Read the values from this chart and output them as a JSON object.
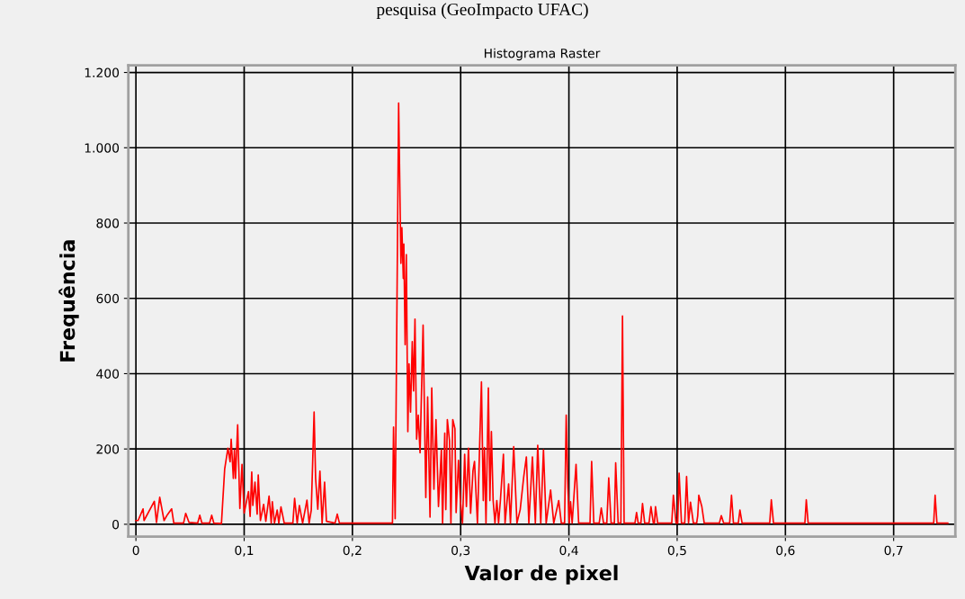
{
  "chart_data": {
    "type": "line",
    "title": "Histograma Raster",
    "xlabel": "Valor de pixel",
    "ylabel": "Frequência",
    "annotations": [
      "pesquisa (GeoImpacto UFAC)"
    ],
    "xlim": [
      -0.007,
      0.757
    ],
    "ylim": [
      -33,
      1219
    ],
    "xticks": [
      0,
      {
        "value": 0.1,
        "label": "0,1"
      },
      {
        "value": 0.2,
        "label": "0,2"
      },
      {
        "value": 0.3,
        "label": "0,3"
      },
      {
        "value": 0.4,
        "label": "0,4"
      },
      {
        "value": 0.5,
        "label": "0,5"
      },
      {
        "value": 0.6,
        "label": "0,6"
      },
      {
        "value": 0.7,
        "label": "0,7"
      }
    ],
    "yticks": [
      0,
      200,
      400,
      600,
      800,
      {
        "value": 1000,
        "label": "1.000"
      },
      {
        "value": 1200,
        "label": "1.200"
      }
    ],
    "grid": true,
    "marker": "none",
    "line_style": "solid",
    "series": [
      {
        "color": "#ff0000",
        "x": [
          0.0,
          0.002,
          0.0066,
          0.0075,
          0.017,
          0.019,
          0.022,
          0.026,
          0.029,
          0.033,
          0.035,
          0.044,
          0.046,
          0.049,
          0.057,
          0.059,
          0.061,
          0.068,
          0.07,
          0.072,
          0.079,
          0.082,
          0.085,
          0.087,
          0.088,
          0.09,
          0.091,
          0.092,
          0.094,
          0.096,
          0.098,
          0.1,
          0.104,
          0.1055,
          0.107,
          0.108,
          0.11,
          0.112,
          0.113,
          0.115,
          0.118,
          0.12,
          0.123,
          0.125,
          0.126,
          0.128,
          0.1305,
          0.132,
          0.134,
          0.137,
          0.145,
          0.1466,
          0.149,
          0.151,
          0.154,
          0.158,
          0.16,
          0.162,
          0.1646,
          0.166,
          0.168,
          0.17,
          0.172,
          0.1743,
          0.176,
          0.184,
          0.186,
          0.188,
          0.237,
          0.238,
          0.2395,
          0.2427,
          0.2448,
          0.2457,
          0.247,
          0.2475,
          0.2487,
          0.2498,
          0.2512,
          0.2523,
          0.2537,
          0.2553,
          0.2565,
          0.2578,
          0.2593,
          0.2608,
          0.2625,
          0.2653,
          0.2678,
          0.2695,
          0.2717,
          0.2733,
          0.2753,
          0.2772,
          0.2795,
          0.2822,
          0.2833,
          0.2853,
          0.2863,
          0.2877,
          0.2897,
          0.291,
          0.2927,
          0.2947,
          0.2958,
          0.298,
          0.2997,
          0.3017,
          0.3037,
          0.3053,
          0.3072,
          0.3092,
          0.3114,
          0.3128,
          0.3155,
          0.3192,
          0.3209,
          0.322,
          0.3234,
          0.3256,
          0.327,
          0.3284,
          0.33,
          0.3317,
          0.3334,
          0.335,
          0.3367,
          0.3395,
          0.341,
          0.3443,
          0.346,
          0.349,
          0.352,
          0.355,
          0.3583,
          0.3607,
          0.363,
          0.3663,
          0.369,
          0.3712,
          0.374,
          0.3765,
          0.379,
          0.3831,
          0.386,
          0.3906,
          0.393,
          0.396,
          0.3975,
          0.399,
          0.4003,
          0.4015,
          0.403,
          0.4066,
          0.409,
          0.4195,
          0.421,
          0.423,
          0.428,
          0.4299,
          0.432,
          0.435,
          0.4368,
          0.439,
          0.442,
          0.4432,
          0.4455,
          0.448,
          0.4495,
          0.451,
          0.461,
          0.4625,
          0.464,
          0.4665,
          0.468,
          0.47,
          0.474,
          0.4758,
          0.478,
          0.479,
          0.48,
          0.482,
          0.495,
          0.4965,
          0.499,
          0.5005,
          0.5018,
          0.504,
          0.507,
          0.5087,
          0.5105,
          0.5123,
          0.515,
          0.518,
          0.519,
          0.52,
          0.5228,
          0.525,
          0.539,
          0.5408,
          0.543,
          0.5485,
          0.5502,
          0.552,
          0.5565,
          0.558,
          0.56,
          0.5855,
          0.587,
          0.589,
          0.618,
          0.6193,
          0.621,
          0.737,
          0.7383,
          0.74,
          0.75
        ],
        "values": [
          10,
          10,
          41,
          10,
          61,
          5,
          72,
          10,
          25,
          41,
          3,
          3,
          29,
          5,
          3,
          24,
          3,
          3,
          24,
          3,
          2,
          147,
          202,
          166,
          226,
          122,
          197,
          122,
          264,
          42,
          159,
          30,
          87,
          21,
          139,
          50,
          112,
          27,
          131,
          10,
          53,
          8,
          75,
          3,
          60,
          3,
          38,
          3,
          46,
          3,
          3,
          69,
          3,
          50,
          3,
          64,
          3,
          38,
          298,
          122,
          40,
          141,
          3,
          112,
          8,
          3,
          27,
          3,
          3,
          258,
          15,
          1119,
          693,
          788,
          653,
          744,
          477,
          716,
          246,
          426,
          298,
          485,
          354,
          545,
          226,
          290,
          190,
          529,
          71,
          338,
          19,
          362,
          93,
          278,
          47,
          198,
          3,
          242,
          39,
          278,
          222,
          3,
          278,
          254,
          31,
          170,
          63,
          3,
          186,
          47,
          202,
          29,
          143,
          167,
          3,
          378,
          63,
          204,
          3,
          362,
          63,
          246,
          63,
          3,
          63,
          3,
          63,
          186,
          3,
          107,
          3,
          206,
          3,
          39,
          127,
          179,
          3,
          179,
          3,
          210,
          3,
          198,
          3,
          91,
          3,
          63,
          3,
          3,
          290,
          99,
          3,
          60,
          3,
          159,
          3,
          3,
          167,
          3,
          3,
          43,
          3,
          3,
          123,
          3,
          3,
          163,
          3,
          3,
          553,
          3,
          3,
          31,
          3,
          3,
          55,
          3,
          3,
          47,
          3,
          3,
          47,
          3,
          3,
          77,
          3,
          3,
          136,
          3,
          3,
          127,
          3,
          59,
          3,
          3,
          23,
          77,
          47,
          3,
          3,
          23,
          3,
          3,
          77,
          3,
          3,
          38,
          3,
          3,
          65,
          3,
          3,
          65,
          3,
          3,
          77,
          3,
          3
        ]
      }
    ]
  }
}
